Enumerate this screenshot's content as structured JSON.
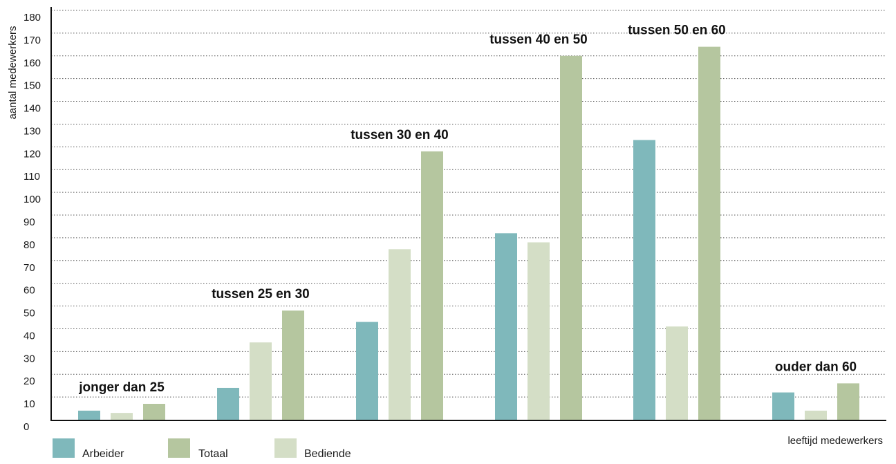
{
  "chart_data": {
    "type": "bar",
    "categories": [
      "jonger dan 25",
      "tussen 25 en 30",
      "tussen 30 en 40",
      "tussen 40 en 50",
      "tussen 50 en 60",
      "ouder dan 60"
    ],
    "series": [
      {
        "name": "Arbeider",
        "values": [
          4,
          14,
          43,
          82,
          123,
          12
        ],
        "color": "#7fb8bb"
      },
      {
        "name": "Bediende",
        "values": [
          3,
          34,
          75,
          78,
          41,
          4
        ],
        "color": "#d4dec6"
      },
      {
        "name": "Totaal",
        "values": [
          7,
          48,
          118,
          160,
          164,
          16
        ],
        "color": "#b5c69f"
      }
    ],
    "xlabel": "leeftijd medewerkers",
    "ylabel": "aantal medewerkers",
    "ylim": [
      0,
      180
    ],
    "yticks": [
      0,
      10,
      20,
      30,
      40,
      50,
      60,
      70,
      80,
      90,
      100,
      110,
      120,
      130,
      140,
      150,
      160,
      170,
      180
    ],
    "grid": true,
    "legend": {
      "placement": "bottom-left",
      "order": [
        "Arbeider",
        "Totaal",
        "Bediende"
      ]
    }
  }
}
